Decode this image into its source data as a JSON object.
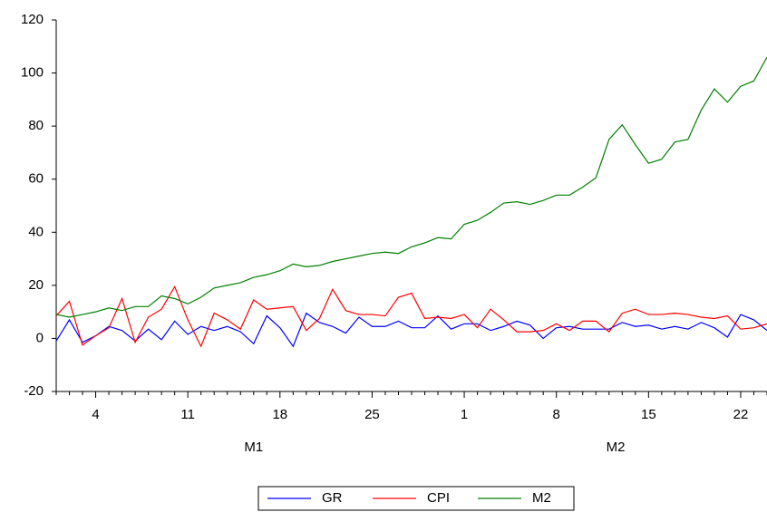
{
  "chart_data": {
    "type": "line",
    "categories": [
      null,
      null,
      null,
      "4",
      null,
      null,
      null,
      null,
      null,
      null,
      "11",
      null,
      null,
      null,
      null,
      null,
      null,
      "18",
      null,
      null,
      null,
      null,
      null,
      null,
      "25",
      null,
      null,
      null,
      null,
      null,
      null,
      "1",
      null,
      null,
      null,
      null,
      null,
      null,
      "8",
      null,
      null,
      null,
      null,
      null,
      null,
      "15",
      null,
      null,
      null,
      null,
      null,
      null,
      "22",
      null,
      null
    ],
    "x_groups": [
      "M1",
      "M2"
    ],
    "series": [
      {
        "name": "GR",
        "color": "#0000ff",
        "values": [
          -1,
          7,
          -1.5,
          1,
          4.5,
          3,
          -1,
          3.5,
          -0.5,
          6.5,
          1.5,
          4.5,
          3,
          4.5,
          2.5,
          -2,
          8.5,
          4,
          -3,
          9.5,
          6,
          4.5,
          2,
          8,
          4.5,
          4.5,
          6.5,
          4,
          4,
          8.5,
          3.5,
          5.5,
          5.5,
          3,
          4.5,
          6.5,
          5,
          0,
          4,
          4.5,
          3.5,
          3.5,
          3.5,
          6,
          4.5,
          5,
          3.5,
          4.5,
          3.5,
          6,
          4,
          0.5,
          9,
          7,
          3
        ]
      },
      {
        "name": "CPI",
        "color": "#ff0000",
        "values": [
          8.5,
          14,
          -2.5,
          1,
          4,
          15,
          -1.5,
          8,
          11,
          19.5,
          7,
          -3,
          9.5,
          7,
          3.5,
          14.5,
          11,
          11.5,
          12,
          3,
          7.5,
          18.5,
          10.5,
          9,
          9,
          8.5,
          15.5,
          17,
          7.5,
          8,
          7.5,
          9,
          4,
          11,
          7,
          2.5,
          2.5,
          3,
          5.5,
          3,
          6.5,
          6.5,
          2.5,
          9.5,
          11,
          9,
          9,
          9.5,
          9,
          8,
          7.5,
          8.5,
          3.5,
          4,
          5.5
        ]
      },
      {
        "name": "M2",
        "color": "#008000",
        "values": [
          9,
          8,
          9,
          10,
          11.5,
          10.5,
          12,
          12,
          16,
          15,
          13,
          15.5,
          19,
          20,
          21,
          23,
          24,
          25.5,
          28,
          27,
          27.5,
          29,
          30,
          31,
          32,
          32.5,
          32,
          34.5,
          36,
          38,
          37.5,
          43,
          44.5,
          47.5,
          51,
          51.5,
          50.5,
          52,
          54,
          54,
          57,
          60.5,
          75,
          80.5,
          73,
          66,
          67.5,
          74,
          75,
          86,
          94,
          89,
          95,
          97,
          106
        ]
      }
    ],
    "ylim": [
      -20,
      120
    ],
    "yticks": [
      -20,
      0,
      20,
      40,
      60,
      80,
      100,
      120
    ],
    "legend": "bottom"
  }
}
